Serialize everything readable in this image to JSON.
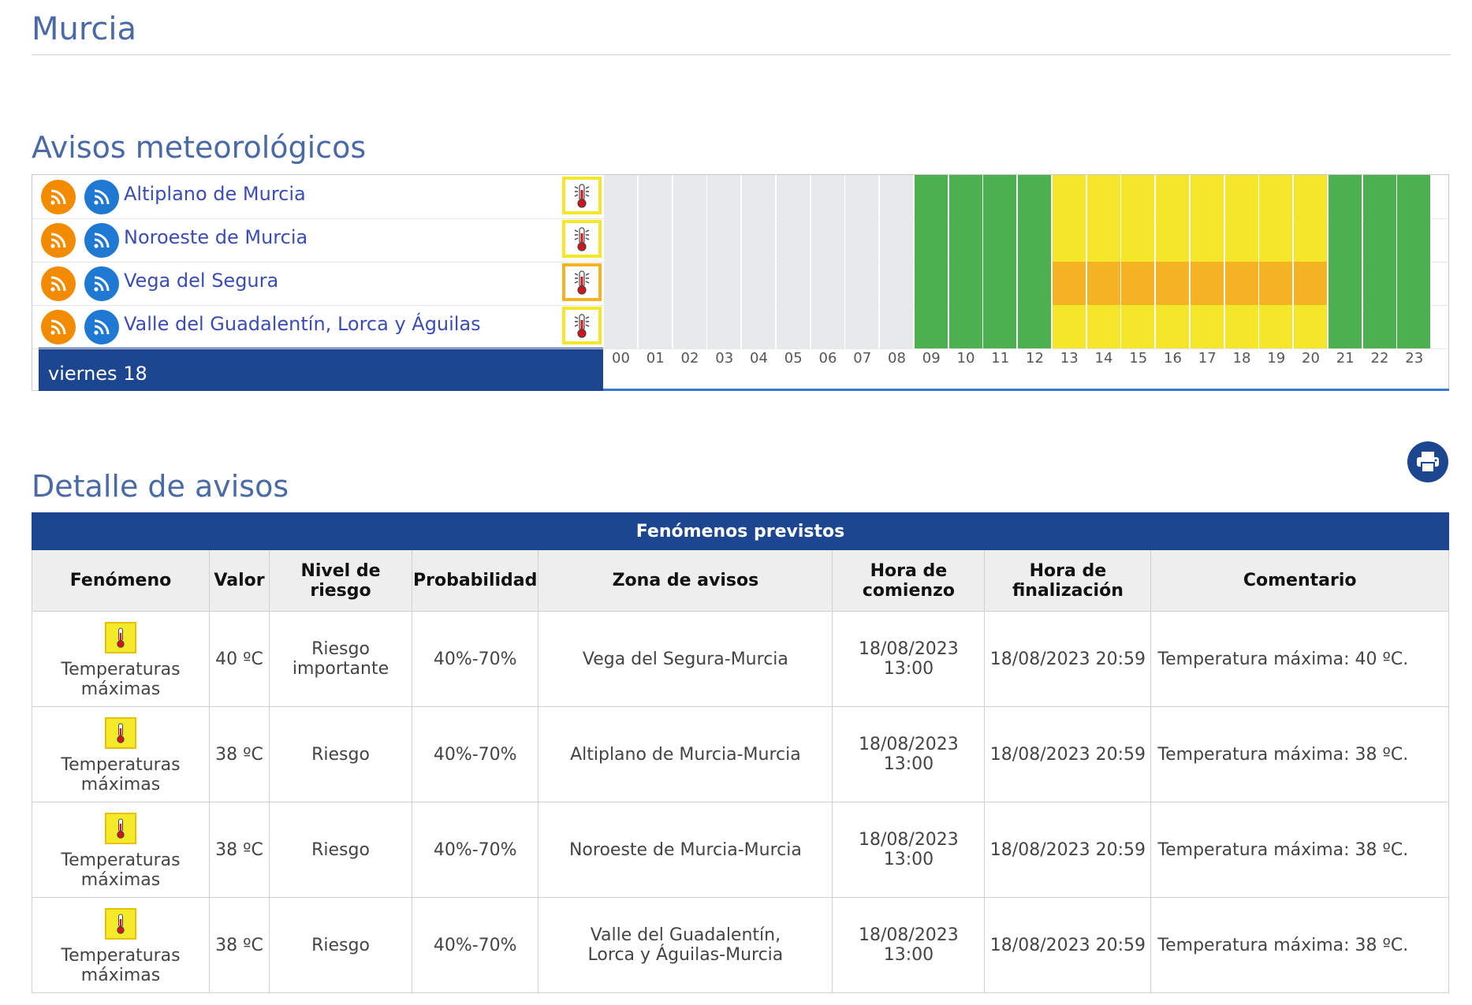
{
  "page": {
    "title": "Murcia",
    "warnings_title": "Avisos meteorológicos",
    "detail_title": "Detalle de avisos"
  },
  "colors": {
    "level_none": "#e8e9eb",
    "level_green": "#4caf50",
    "level_yellow": "#f4e62b",
    "level_orange": "#f5b324",
    "header_blue": "#1d4690"
  },
  "timeline": {
    "day_label": "viernes 18",
    "hours": [
      "00",
      "01",
      "02",
      "03",
      "04",
      "05",
      "06",
      "07",
      "08",
      "09",
      "10",
      "11",
      "12",
      "13",
      "14",
      "15",
      "16",
      "17",
      "18",
      "19",
      "20",
      "21",
      "22",
      "23"
    ],
    "zones": [
      {
        "name": "Altiplano de Murcia",
        "icon_level": "yellow",
        "levels": [
          "none",
          "none",
          "none",
          "none",
          "none",
          "none",
          "none",
          "none",
          "none",
          "green",
          "green",
          "green",
          "green",
          "yellow",
          "yellow",
          "yellow",
          "yellow",
          "yellow",
          "yellow",
          "yellow",
          "yellow",
          "green",
          "green",
          "green"
        ]
      },
      {
        "name": "Noroeste de Murcia",
        "icon_level": "yellow",
        "levels": [
          "none",
          "none",
          "none",
          "none",
          "none",
          "none",
          "none",
          "none",
          "none",
          "green",
          "green",
          "green",
          "green",
          "yellow",
          "yellow",
          "yellow",
          "yellow",
          "yellow",
          "yellow",
          "yellow",
          "yellow",
          "green",
          "green",
          "green"
        ]
      },
      {
        "name": "Vega del Segura",
        "icon_level": "orange",
        "levels": [
          "none",
          "none",
          "none",
          "none",
          "none",
          "none",
          "none",
          "none",
          "none",
          "green",
          "green",
          "green",
          "green",
          "orange",
          "orange",
          "orange",
          "orange",
          "orange",
          "orange",
          "orange",
          "orange",
          "green",
          "green",
          "green"
        ]
      },
      {
        "name": "Valle del Guadalentín, Lorca y Águilas",
        "icon_level": "yellow",
        "levels": [
          "none",
          "none",
          "none",
          "none",
          "none",
          "none",
          "none",
          "none",
          "none",
          "green",
          "green",
          "green",
          "green",
          "yellow",
          "yellow",
          "yellow",
          "yellow",
          "yellow",
          "yellow",
          "yellow",
          "yellow",
          "green",
          "green",
          "green"
        ]
      }
    ]
  },
  "detail": {
    "caption": "Fenómenos previstos",
    "headers": {
      "fenomeno": "Fenómeno",
      "valor": "Valor",
      "nivel": "Nivel de riesgo",
      "probabilidad": "Probabilidad",
      "zona": "Zona de avisos",
      "inicio": "Hora de comienzo",
      "fin": "Hora de finalización",
      "comentario": "Comentario"
    },
    "rows": [
      {
        "fenomeno": "Temperaturas máximas",
        "valor": "40 ºC",
        "nivel": "Riesgo importante",
        "probabilidad": "40%-70%",
        "zona": "Vega del Segura-Murcia",
        "inicio": "18/08/2023 13:00",
        "fin": "18/08/2023 20:59",
        "comentario": "Temperatura máxima: 40 ºC."
      },
      {
        "fenomeno": "Temperaturas máximas",
        "valor": "38 ºC",
        "nivel": "Riesgo",
        "probabilidad": "40%-70%",
        "zona": "Altiplano de Murcia-Murcia",
        "inicio": "18/08/2023 13:00",
        "fin": "18/08/2023 20:59",
        "comentario": "Temperatura máxima: 38 ºC."
      },
      {
        "fenomeno": "Temperaturas máximas",
        "valor": "38 ºC",
        "nivel": "Riesgo",
        "probabilidad": "40%-70%",
        "zona": "Noroeste de Murcia-Murcia",
        "inicio": "18/08/2023 13:00",
        "fin": "18/08/2023 20:59",
        "comentario": "Temperatura máxima: 38 ºC."
      },
      {
        "fenomeno": "Temperaturas máximas",
        "valor": "38 ºC",
        "nivel": "Riesgo",
        "probabilidad": "40%-70%",
        "zona": "Valle del Guadalentín, Lorca y Águilas-Murcia",
        "inicio": "18/08/2023 13:00",
        "fin": "18/08/2023 20:59",
        "comentario": "Temperatura máxima: 38 ºC."
      }
    ]
  }
}
